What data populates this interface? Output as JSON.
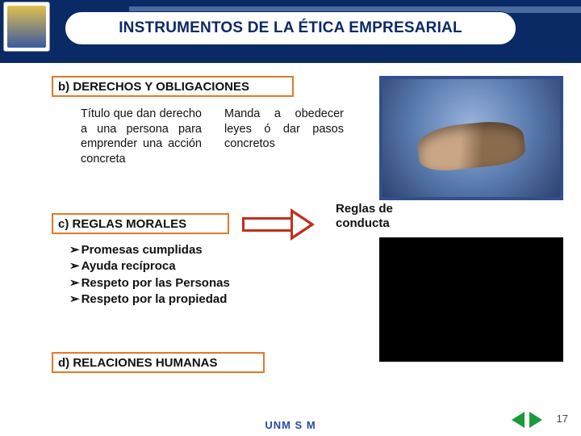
{
  "title": "INSTRUMENTOS DE LA  ÉTICA EMPRESARIAL",
  "colors": {
    "header_bg": "#0a2a66",
    "title_text": "#0a2a66",
    "box_border": "#e07a2a",
    "arrow_border": "#c03020",
    "nav_green": "#1a9a3a",
    "img_border": "#334f8a",
    "footer_text": "#2a4aa0"
  },
  "section_b": {
    "label": "b)  DERECHOS  Y  OBLIGACIONES",
    "left_text": "Título que dan derecho a una persona para emprender una acción concreta",
    "right_text": "Manda a obedecer leyes ó dar pasos concretos"
  },
  "section_c": {
    "label": "c)  REGLAS MORALES",
    "arrow_label_line1": "Reglas de",
    "arrow_label_line2": "conducta",
    "bullets": [
      "Promesas cumplidas",
      "Ayuda recíproca",
      "Respeto por las Personas",
      "Respeto por la propiedad"
    ]
  },
  "section_d": {
    "label": "d)  RELACIONES HUMANAS"
  },
  "footer": "UNM S M",
  "page_number": "17",
  "nav": {
    "prev": "prev-slide",
    "next": "next-slide"
  }
}
